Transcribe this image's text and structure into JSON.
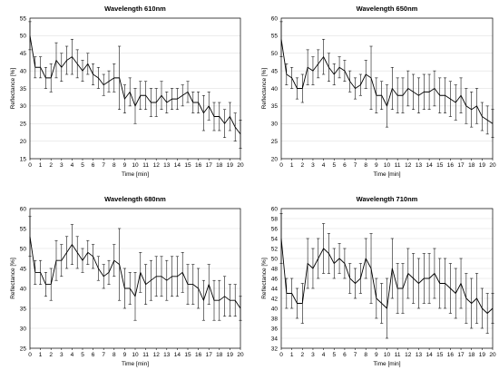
{
  "chart_data": [
    {
      "type": "line",
      "title": "Wavelength 610nm",
      "xlabel": "Time [min]",
      "ylabel": "Reflectance [%]",
      "xlim": [
        0,
        20
      ],
      "ylim": [
        15,
        55
      ],
      "xticks": [
        "0",
        "1",
        "2",
        "3",
        "4",
        "5",
        "6",
        "7",
        "8",
        "9",
        "10",
        "11",
        "12",
        "13",
        "14",
        "15",
        "16",
        "17",
        "18",
        "19",
        "20"
      ],
      "yticks": [
        "15",
        "20",
        "25",
        "30",
        "35",
        "40",
        "45",
        "50",
        "55"
      ],
      "grid": true,
      "series": [
        {
          "x": [
            0,
            0.5,
            1,
            1.5,
            2,
            2.5,
            3,
            3.5,
            4,
            4.5,
            5,
            5.5,
            6,
            6.5,
            7,
            7.5,
            8,
            8.5,
            9,
            9.5,
            10,
            10.5,
            11,
            11.5,
            12,
            12.5,
            13,
            13.5,
            14,
            14.5,
            15,
            15.5,
            16,
            16.5,
            17,
            17.5,
            18,
            18.5,
            19,
            19.5,
            20
          ],
          "y": [
            50,
            41,
            41,
            38,
            38,
            43,
            41,
            43,
            44,
            42,
            40,
            42,
            39,
            38,
            36,
            37,
            38,
            38,
            32,
            34,
            30,
            33,
            33,
            31,
            31,
            33,
            31,
            32,
            32,
            33,
            34,
            31,
            31,
            28,
            30,
            27,
            27,
            25,
            27,
            24,
            22
          ],
          "err": [
            4,
            3,
            3,
            3,
            4,
            5,
            4,
            4,
            5,
            4,
            3,
            3,
            3,
            3,
            3,
            3,
            4,
            9,
            4,
            4,
            5,
            4,
            4,
            4,
            4,
            4,
            3,
            3,
            3,
            3,
            3,
            3,
            3,
            5,
            4,
            4,
            4,
            4,
            4,
            4,
            4
          ]
        }
      ]
    },
    {
      "type": "line",
      "title": "Wavelength 650nm",
      "xlabel": "Time [min]",
      "ylabel": "Reflectance [%]",
      "xlim": [
        0,
        20
      ],
      "ylim": [
        20,
        60
      ],
      "xticks": [
        "0",
        "1",
        "2",
        "3",
        "4",
        "5",
        "6",
        "7",
        "8",
        "9",
        "10",
        "11",
        "12",
        "13",
        "14",
        "15",
        "16",
        "17",
        "18",
        "19",
        "20"
      ],
      "yticks": [
        "20",
        "25",
        "30",
        "35",
        "40",
        "45",
        "50",
        "55",
        "60"
      ],
      "grid": true,
      "series": [
        {
          "x": [
            0,
            0.5,
            1,
            1.5,
            2,
            2.5,
            3,
            3.5,
            4,
            4.5,
            5,
            5.5,
            6,
            6.5,
            7,
            7.5,
            8,
            8.5,
            9,
            9.5,
            10,
            10.5,
            11,
            11.5,
            12,
            12.5,
            13,
            13.5,
            14,
            14.5,
            15,
            15.5,
            16,
            16.5,
            17,
            17.5,
            18,
            18.5,
            19,
            19.5,
            20
          ],
          "y": [
            54,
            44,
            43,
            40,
            40,
            46,
            45,
            47,
            49,
            46,
            44,
            46,
            45,
            42,
            40,
            41,
            44,
            43,
            38,
            38,
            35,
            40,
            38,
            38,
            40,
            39,
            38,
            39,
            39,
            40,
            38,
            38,
            37,
            36,
            38,
            35,
            34,
            35,
            32,
            31,
            30
          ],
          "err": [
            5,
            3,
            3,
            3,
            4,
            5,
            4,
            4,
            5,
            4,
            3,
            3,
            3,
            3,
            3,
            3,
            4,
            9,
            5,
            4,
            6,
            6,
            5,
            5,
            5,
            5,
            5,
            5,
            5,
            5,
            5,
            5,
            5,
            5,
            5,
            5,
            5,
            5,
            4,
            4,
            4
          ]
        }
      ]
    },
    {
      "type": "line",
      "title": "Wavelength 680nm",
      "xlabel": "Time [min]",
      "ylabel": "Reflectance [%]",
      "xlim": [
        0,
        20
      ],
      "ylim": [
        25,
        60
      ],
      "xticks": [
        "0",
        "1",
        "2",
        "3",
        "4",
        "5",
        "6",
        "7",
        "8",
        "9",
        "10",
        "11",
        "12",
        "13",
        "14",
        "15",
        "16",
        "17",
        "18",
        "19",
        "20"
      ],
      "yticks": [
        "25",
        "30",
        "35",
        "40",
        "45",
        "50",
        "55",
        "60"
      ],
      "grid": true,
      "series": [
        {
          "x": [
            0,
            0.5,
            1,
            1.5,
            2,
            2.5,
            3,
            3.5,
            4,
            4.5,
            5,
            5.5,
            6,
            6.5,
            7,
            7.5,
            8,
            8.5,
            9,
            9.5,
            10,
            10.5,
            11,
            11.5,
            12,
            12.5,
            13,
            13.5,
            14,
            14.5,
            15,
            15.5,
            16,
            16.5,
            17,
            17.5,
            18,
            18.5,
            19,
            19.5,
            20
          ],
          "y": [
            53,
            44,
            44,
            41,
            41,
            47,
            47,
            49,
            51,
            49,
            47,
            49,
            48,
            45,
            43,
            44,
            47,
            46,
            40,
            40,
            38,
            44,
            41,
            42,
            43,
            43,
            42,
            43,
            43,
            44,
            41,
            41,
            40,
            37,
            41,
            37,
            37,
            38,
            37,
            37,
            35
          ],
          "err": [
            5,
            3,
            3,
            3,
            4,
            5,
            4,
            4,
            5,
            4,
            3,
            3,
            3,
            3,
            3,
            3,
            4,
            9,
            5,
            4,
            6,
            5,
            5,
            5,
            5,
            5,
            5,
            5,
            5,
            5,
            5,
            5,
            5,
            5,
            5,
            5,
            5,
            5,
            4,
            4,
            3
          ]
        }
      ]
    },
    {
      "type": "line",
      "title": "Wavelength 710nm",
      "xlabel": "Time [min]",
      "ylabel": "Reflectance [%]",
      "xlim": [
        0,
        20
      ],
      "ylim": [
        32,
        60
      ],
      "xticks": [
        "0",
        "1",
        "2",
        "3",
        "4",
        "5",
        "6",
        "7",
        "8",
        "9",
        "10",
        "11",
        "12",
        "13",
        "14",
        "15",
        "16",
        "17",
        "18",
        "19",
        "20"
      ],
      "yticks": [
        "32",
        "34",
        "36",
        "38",
        "40",
        "42",
        "44",
        "46",
        "48",
        "50",
        "52",
        "54",
        "56",
        "58",
        "60"
      ],
      "grid": true,
      "series": [
        {
          "x": [
            0,
            0.5,
            1,
            1.5,
            2,
            2.5,
            3,
            3.5,
            4,
            4.5,
            5,
            5.5,
            6,
            6.5,
            7,
            7.5,
            8,
            8.5,
            9,
            9.5,
            10,
            10.5,
            11,
            11.5,
            12,
            12.5,
            13,
            13.5,
            14,
            14.5,
            15,
            15.5,
            16,
            16.5,
            17,
            17.5,
            18,
            18.5,
            19,
            19.5,
            20
          ],
          "y": [
            54,
            43,
            43,
            41,
            41,
            49,
            48,
            50,
            52,
            51,
            49,
            50,
            49,
            46,
            45,
            46,
            50,
            48,
            42,
            41,
            40,
            48,
            44,
            44,
            47,
            46,
            45,
            46,
            46,
            47,
            45,
            45,
            44,
            43,
            45,
            42,
            41,
            42,
            40,
            39,
            40
          ],
          "err": [
            5,
            3,
            3,
            3,
            4,
            5,
            4,
            4,
            5,
            4,
            3,
            3,
            3,
            3,
            3,
            3,
            4,
            7,
            4,
            4,
            6,
            6,
            5,
            5,
            5,
            5,
            5,
            5,
            5,
            5,
            5,
            5,
            5,
            5,
            5,
            5,
            5,
            5,
            4,
            4,
            3
          ]
        }
      ]
    }
  ]
}
